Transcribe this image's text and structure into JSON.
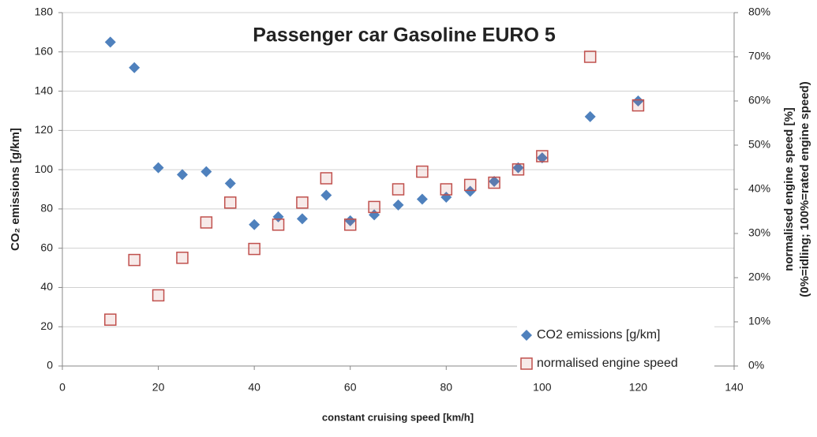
{
  "chart_data": {
    "type": "scatter",
    "title": "Passenger car Gasoline EURO 5",
    "xlabel": "constant cruising speed [km/h]",
    "ylabel": "CO₂ emissions [g/km]",
    "y2label": [
      "normalised engine speed [%]",
      "(0%=idling; 100%=rated engine speed)"
    ],
    "xlim": [
      0,
      140
    ],
    "xticks": [
      0,
      20,
      40,
      60,
      80,
      100,
      120,
      140
    ],
    "ylim": [
      0,
      180
    ],
    "yticks": [
      0,
      20,
      40,
      60,
      80,
      100,
      120,
      140,
      160,
      180
    ],
    "y2lim": [
      0,
      80
    ],
    "y2ticks": [
      {
        "value": 0,
        "label": "0%"
      },
      {
        "value": 10,
        "label": "10%"
      },
      {
        "value": 20,
        "label": "20%"
      },
      {
        "value": 30,
        "label": "30%"
      },
      {
        "value": 40,
        "label": "40%"
      },
      {
        "value": 50,
        "label": "50%"
      },
      {
        "value": 60,
        "label": "60%"
      },
      {
        "value": 70,
        "label": "70%"
      },
      {
        "value": 80,
        "label": "80%"
      }
    ],
    "grid": true,
    "legend": "lower right",
    "series": [
      {
        "name": "CO2 emissions [g/km]",
        "color": "#4f81bd",
        "marker": "diamond",
        "x": [
          10,
          15,
          20,
          25,
          30,
          35,
          40,
          45,
          50,
          55,
          60,
          65,
          70,
          75,
          80,
          85,
          90,
          95,
          100,
          110,
          120
        ],
        "values": [
          165,
          152,
          101,
          97.5,
          99,
          93,
          72,
          76,
          75,
          87,
          74,
          77,
          82,
          85,
          86,
          89,
          94,
          101,
          106,
          127,
          135
        ]
      },
      {
        "name": "normalised engine speed",
        "color": "#c0504d",
        "marker": "square",
        "axis": "y2",
        "x": [
          10,
          15,
          20,
          25,
          30,
          35,
          40,
          45,
          50,
          55,
          60,
          65,
          70,
          75,
          80,
          85,
          90,
          95,
          100,
          110,
          120
        ],
        "values": [
          10.5,
          24,
          16,
          24.5,
          32.5,
          37,
          26.5,
          32,
          37,
          42.5,
          32,
          36,
          40,
          44,
          40,
          41,
          41.5,
          44.5,
          47.5,
          70,
          59
        ]
      }
    ]
  }
}
